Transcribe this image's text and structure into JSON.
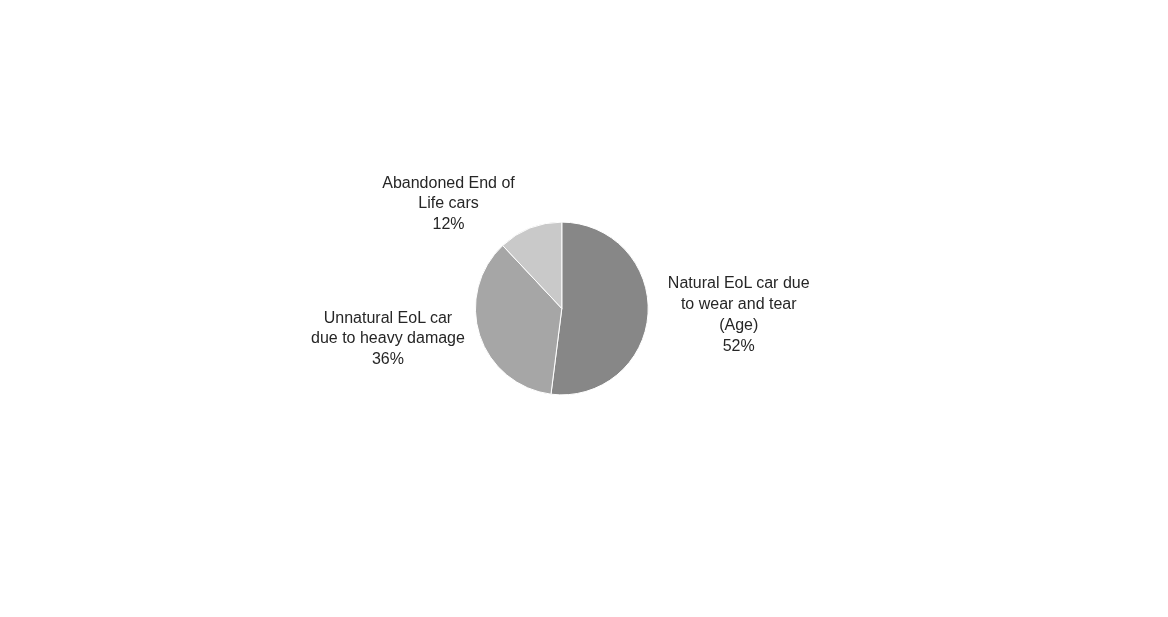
{
  "chart_data": {
    "type": "pie",
    "categories": [
      "Natural EoL car due to wear and tear (Age)",
      "Unnatural EoL car due to heavy damage",
      "Abandoned End of Life cars"
    ],
    "values": [
      52,
      36,
      12
    ],
    "value_labels": [
      "52%",
      "36%",
      "12%"
    ],
    "colors": [
      "#878787",
      "#a6a6a6",
      "#c9c9c9"
    ],
    "legend": false
  }
}
